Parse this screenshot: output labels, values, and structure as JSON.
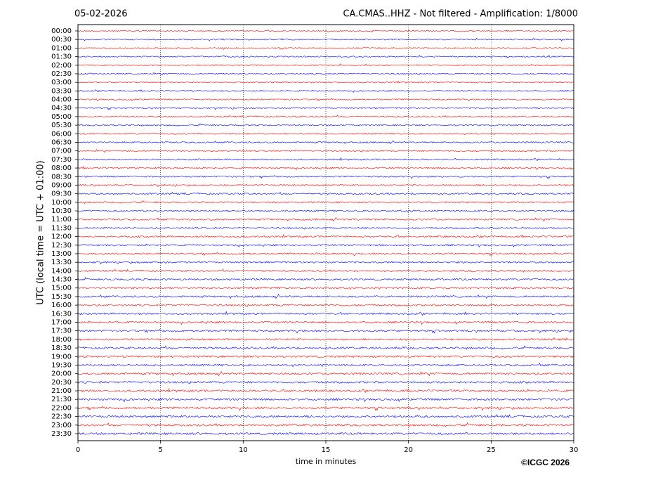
{
  "chart_data": {
    "type": "helicorder",
    "title": "05-02-2026",
    "subtitle": "CA.CMAS..HHZ - Not filtered - Amplification: 1/8000",
    "y_label": "UTC (local time = UTC + 01:00)",
    "x_label": "time in minutes",
    "copyright": "©ICGC 2026",
    "categories": [
      "00:00",
      "00:30",
      "01:00",
      "01:30",
      "02:00",
      "02:30",
      "03:00",
      "03:30",
      "04:00",
      "04:30",
      "05:00",
      "05:30",
      "06:00",
      "06:30",
      "07:00",
      "07:30",
      "08:00",
      "08:30",
      "09:00",
      "09:30",
      "10:00",
      "10:30",
      "11:00",
      "11:30",
      "12:00",
      "12:30",
      "13:00",
      "13:30",
      "14:00",
      "14:30",
      "15:00",
      "15:30",
      "16:00",
      "16:30",
      "17:00",
      "17:30",
      "18:00",
      "18:30",
      "19:00",
      "19:30",
      "20:00",
      "20:30",
      "21:00",
      "21:30",
      "22:00",
      "22:30",
      "23:00",
      "23:30"
    ],
    "colors": [
      "#ff0000",
      "#0000ff"
    ],
    "xlim": [
      0,
      30
    ],
    "xticks": [
      0,
      5,
      10,
      15,
      20,
      25,
      30
    ],
    "grid": true
  }
}
